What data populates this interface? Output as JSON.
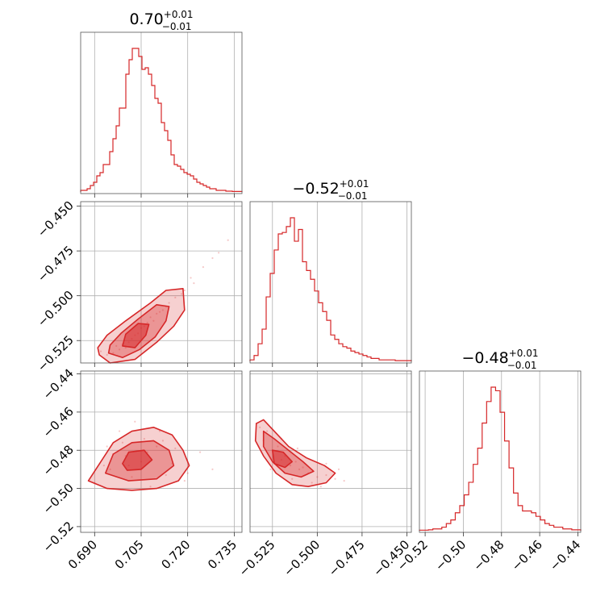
{
  "chart_data": {
    "type": "corner",
    "color": "#d62728",
    "grid": true,
    "parameters": [
      {
        "index": 0,
        "title": {
          "main": "0.70",
          "upper": "+0.01",
          "lower": "−0.01"
        },
        "range": [
          0.6855,
          0.7375
        ],
        "ticks": [
          0.69,
          0.705,
          0.72,
          0.735
        ],
        "tick_labels": [
          "0.690",
          "0.705",
          "0.720",
          "0.735"
        ],
        "hist_values": [
          0.01,
          0.01,
          0.02,
          0.04,
          0.06,
          0.1,
          0.12,
          0.17,
          0.17,
          0.25,
          0.33,
          0.41,
          0.52,
          0.52,
          0.73,
          0.82,
          0.89,
          0.89,
          0.84,
          0.76,
          0.77,
          0.73,
          0.66,
          0.58,
          0.55,
          0.43,
          0.38,
          0.32,
          0.23,
          0.17,
          0.16,
          0.14,
          0.12,
          0.11,
          0.1,
          0.08,
          0.06,
          0.05,
          0.04,
          0.03,
          0.02,
          0.02,
          0.01,
          0.01,
          0.01,
          0.005,
          0.005,
          0.003,
          0.003,
          0.003
        ]
      },
      {
        "index": 1,
        "title": {
          "main": "−0.52",
          "upper": "+0.01",
          "lower": "−0.01"
        },
        "range": [
          -0.5375,
          -0.4475
        ],
        "ticks": [
          -0.525,
          -0.5,
          -0.475,
          -0.45
        ],
        "tick_labels": [
          "−0.525",
          "−0.500",
          "−0.475",
          "−0.450"
        ],
        "hist_values": [
          0.01,
          0.04,
          0.12,
          0.22,
          0.44,
          0.6,
          0.76,
          0.87,
          0.88,
          0.92,
          0.98,
          0.82,
          0.9,
          0.68,
          0.62,
          0.56,
          0.48,
          0.4,
          0.34,
          0.28,
          0.18,
          0.15,
          0.12,
          0.1,
          0.09,
          0.07,
          0.06,
          0.05,
          0.04,
          0.03,
          0.02,
          0.02,
          0.01,
          0.01,
          0.01,
          0.01,
          0.005,
          0.005,
          0.005,
          0.005
        ]
      },
      {
        "index": 2,
        "title": {
          "main": "−0.48",
          "upper": "+0.01",
          "lower": "−0.01"
        },
        "range": [
          -0.523,
          -0.4385
        ],
        "ticks": [
          -0.52,
          -0.5,
          -0.48,
          -0.46,
          -0.44
        ],
        "tick_labels": [
          "−0.52",
          "−0.50",
          "−0.48",
          "−0.46",
          "−0.44"
        ],
        "hist_values": [
          0.003,
          0.003,
          0.005,
          0.01,
          0.01,
          0.02,
          0.04,
          0.06,
          0.1,
          0.14,
          0.2,
          0.27,
          0.37,
          0.46,
          0.6,
          0.72,
          0.8,
          0.78,
          0.66,
          0.5,
          0.35,
          0.21,
          0.14,
          0.11,
          0.11,
          0.1,
          0.08,
          0.06,
          0.04,
          0.03,
          0.02,
          0.02,
          0.01,
          0.01,
          0.005,
          0.005
        ]
      }
    ],
    "pairs": [
      {
        "x_param": 0,
        "y_param": 1,
        "points": [
          [
            0.698,
            -0.53
          ],
          [
            0.701,
            -0.526
          ],
          [
            0.704,
            -0.521
          ],
          [
            0.702,
            -0.524
          ],
          [
            0.707,
            -0.515
          ],
          [
            0.71,
            -0.51
          ],
          [
            0.713,
            -0.506
          ],
          [
            0.694,
            -0.533
          ],
          [
            0.692,
            -0.531
          ],
          [
            0.699,
            -0.527
          ],
          [
            0.705,
            -0.518
          ],
          [
            0.708,
            -0.512
          ],
          [
            0.716,
            -0.501
          ],
          [
            0.719,
            -0.497
          ],
          [
            0.722,
            -0.493
          ],
          [
            0.725,
            -0.484
          ],
          [
            0.728,
            -0.479
          ],
          [
            0.73,
            -0.476
          ],
          [
            0.733,
            -0.469
          ],
          [
            0.7,
            -0.529
          ],
          [
            0.703,
            -0.522
          ],
          [
            0.706,
            -0.517
          ],
          [
            0.711,
            -0.509
          ],
          [
            0.714,
            -0.504
          ],
          [
            0.696,
            -0.532
          ],
          [
            0.697,
            -0.528
          ],
          [
            0.709,
            -0.514
          ],
          [
            0.712,
            -0.508
          ],
          [
            0.718,
            -0.499
          ],
          [
            0.721,
            -0.49
          ]
        ],
        "contours": [
          [
            [
              0.6915,
              -0.533
            ],
            [
              0.695,
              -0.5375
            ],
            [
              0.703,
              -0.5355
            ],
            [
              0.71,
              -0.526
            ],
            [
              0.7155,
              -0.517
            ],
            [
              0.719,
              -0.508
            ],
            [
              0.7185,
              -0.496
            ],
            [
              0.713,
              -0.497
            ],
            [
              0.708,
              -0.504
            ],
            [
              0.7,
              -0.514
            ],
            [
              0.694,
              -0.522
            ],
            [
              0.691,
              -0.529
            ]
          ],
          [
            [
              0.6945,
              -0.532
            ],
            [
              0.699,
              -0.5345
            ],
            [
              0.7045,
              -0.53
            ],
            [
              0.7095,
              -0.523
            ],
            [
              0.713,
              -0.514
            ],
            [
              0.714,
              -0.506
            ],
            [
              0.71,
              -0.505
            ],
            [
              0.704,
              -0.513
            ],
            [
              0.6985,
              -0.521
            ],
            [
              0.695,
              -0.5275
            ]
          ],
          [
            [
              0.699,
              -0.528
            ],
            [
              0.703,
              -0.529
            ],
            [
              0.7065,
              -0.522
            ],
            [
              0.7075,
              -0.516
            ],
            [
              0.704,
              -0.5155
            ],
            [
              0.7,
              -0.5215
            ]
          ]
        ]
      },
      {
        "x_param": 0,
        "y_param": 2,
        "points": [
          [
            0.695,
            -0.49
          ],
          [
            0.7,
            -0.483
          ],
          [
            0.705,
            -0.486
          ],
          [
            0.71,
            -0.478
          ],
          [
            0.698,
            -0.47
          ],
          [
            0.702,
            -0.494
          ],
          [
            0.707,
            -0.481
          ],
          [
            0.712,
            -0.475
          ],
          [
            0.693,
            -0.488
          ],
          [
            0.715,
            -0.487
          ],
          [
            0.72,
            -0.492
          ],
          [
            0.724,
            -0.481
          ],
          [
            0.69,
            -0.497
          ],
          [
            0.699,
            -0.476
          ],
          [
            0.708,
            -0.499
          ],
          [
            0.703,
            -0.465
          ],
          [
            0.711,
            -0.47
          ],
          [
            0.716,
            -0.479
          ],
          [
            0.696,
            -0.482
          ],
          [
            0.701,
            -0.488
          ],
          [
            0.719,
            -0.496
          ],
          [
            0.713,
            -0.493
          ],
          [
            0.706,
            -0.474
          ],
          [
            0.694,
            -0.478
          ],
          [
            0.728,
            -0.49
          ]
        ],
        "contours": [
          [
            [
              0.688,
              -0.496
            ],
            [
              0.692,
              -0.486
            ],
            [
              0.696,
              -0.476
            ],
            [
              0.702,
              -0.47
            ],
            [
              0.709,
              -0.468
            ],
            [
              0.715,
              -0.472
            ],
            [
              0.7185,
              -0.48
            ],
            [
              0.7205,
              -0.488
            ],
            [
              0.717,
              -0.496
            ],
            [
              0.71,
              -0.5
            ],
            [
              0.702,
              -0.501
            ],
            [
              0.694,
              -0.5
            ]
          ],
          [
            [
              0.6935,
              -0.492
            ],
            [
              0.696,
              -0.482
            ],
            [
              0.702,
              -0.476
            ],
            [
              0.709,
              -0.475
            ],
            [
              0.714,
              -0.48
            ],
            [
              0.7155,
              -0.488
            ],
            [
              0.71,
              -0.495
            ],
            [
              0.701,
              -0.496
            ]
          ],
          [
            [
              0.699,
              -0.487
            ],
            [
              0.701,
              -0.481
            ],
            [
              0.706,
              -0.48
            ],
            [
              0.7085,
              -0.485
            ],
            [
              0.705,
              -0.49
            ],
            [
              0.7005,
              -0.4905
            ]
          ]
        ]
      },
      {
        "x_param": 1,
        "y_param": 2,
        "points": [
          [
            -0.53,
            -0.475
          ],
          [
            -0.525,
            -0.48
          ],
          [
            -0.52,
            -0.485
          ],
          [
            -0.515,
            -0.488
          ],
          [
            -0.51,
            -0.49
          ],
          [
            -0.505,
            -0.492
          ],
          [
            -0.5,
            -0.494
          ],
          [
            -0.495,
            -0.493
          ],
          [
            -0.49,
            -0.495
          ],
          [
            -0.485,
            -0.496
          ],
          [
            -0.528,
            -0.47
          ],
          [
            -0.532,
            -0.468
          ],
          [
            -0.522,
            -0.478
          ],
          [
            -0.518,
            -0.483
          ],
          [
            -0.512,
            -0.486
          ],
          [
            -0.508,
            -0.489
          ],
          [
            -0.503,
            -0.497
          ],
          [
            -0.498,
            -0.499
          ],
          [
            -0.526,
            -0.49
          ],
          [
            -0.52,
            -0.474
          ],
          [
            -0.514,
            -0.495
          ],
          [
            -0.511,
            -0.479
          ],
          [
            -0.495,
            -0.487
          ],
          [
            -0.488,
            -0.49
          ],
          [
            -0.534,
            -0.466
          ]
        ],
        "contours": [
          [
            [
              -0.534,
              -0.466
            ],
            [
              -0.53,
              -0.464
            ],
            [
              -0.524,
              -0.47
            ],
            [
              -0.516,
              -0.478
            ],
            [
              -0.506,
              -0.484
            ],
            [
              -0.496,
              -0.488
            ],
            [
              -0.49,
              -0.492
            ],
            [
              -0.495,
              -0.497
            ],
            [
              -0.505,
              -0.499
            ],
            [
              -0.514,
              -0.498
            ],
            [
              -0.523,
              -0.492
            ],
            [
              -0.53,
              -0.483
            ],
            [
              -0.5345,
              -0.475
            ]
          ],
          [
            [
              -0.53,
              -0.47
            ],
            [
              -0.524,
              -0.474
            ],
            [
              -0.516,
              -0.48
            ],
            [
              -0.508,
              -0.486
            ],
            [
              -0.502,
              -0.491
            ],
            [
              -0.509,
              -0.494
            ],
            [
              -0.518,
              -0.492
            ],
            [
              -0.525,
              -0.486
            ],
            [
              -0.53,
              -0.478
            ]
          ],
          [
            [
              -0.525,
              -0.48
            ],
            [
              -0.519,
              -0.481
            ],
            [
              -0.514,
              -0.486
            ],
            [
              -0.518,
              -0.489
            ],
            [
              -0.524,
              -0.487
            ]
          ]
        ]
      }
    ]
  }
}
